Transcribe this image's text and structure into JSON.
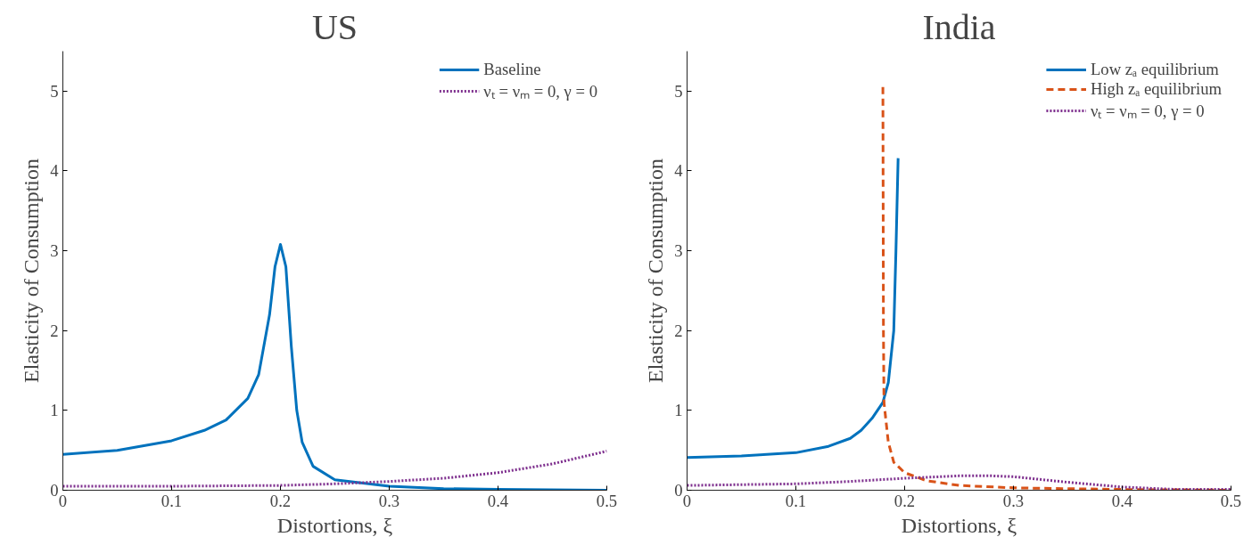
{
  "chart_data": [
    {
      "type": "line",
      "title": "US",
      "xlabel": "Distortions, ξ",
      "ylabel": "Elasticity of Consumption",
      "xlim": [
        0,
        0.5
      ],
      "ylim": [
        0,
        5.5
      ],
      "xticks": [
        0,
        0.1,
        0.2,
        0.3,
        0.4,
        0.5
      ],
      "yticks": [
        0,
        1,
        2,
        3,
        4,
        5
      ],
      "grid": false,
      "legend": "top right",
      "series": [
        {
          "name": "Baseline",
          "color": "#0072bd",
          "line_style": "solid",
          "x": [
            0,
            0.05,
            0.1,
            0.13,
            0.15,
            0.17,
            0.18,
            0.19,
            0.195,
            0.2,
            0.205,
            0.21,
            0.215,
            0.22,
            0.23,
            0.25,
            0.3,
            0.35,
            0.4,
            0.5
          ],
          "values": [
            0.45,
            0.5,
            0.62,
            0.75,
            0.88,
            1.15,
            1.45,
            2.2,
            2.8,
            3.08,
            2.8,
            1.8,
            1.0,
            0.6,
            0.3,
            0.13,
            0.05,
            0.02,
            0.01,
            0.0
          ]
        },
        {
          "name": "νₜ = νₘ = 0, γ = 0",
          "color": "#7e2f8e",
          "line_style": "dotted",
          "x": [
            0,
            0.1,
            0.2,
            0.25,
            0.3,
            0.35,
            0.4,
            0.45,
            0.5
          ],
          "values": [
            0.05,
            0.05,
            0.06,
            0.08,
            0.11,
            0.15,
            0.22,
            0.33,
            0.49
          ]
        }
      ]
    },
    {
      "type": "line",
      "title": "India",
      "xlabel": "Distortions, ξ",
      "ylabel": "Elasticity of Consumption",
      "xlim": [
        0,
        0.5
      ],
      "ylim": [
        0,
        5.5
      ],
      "xticks": [
        0,
        0.1,
        0.2,
        0.3,
        0.4,
        0.5
      ],
      "yticks": [
        0,
        1,
        2,
        3,
        4,
        5
      ],
      "grid": false,
      "legend": "top right",
      "series": [
        {
          "name": "Low zₐ equilibrium",
          "color": "#0072bd",
          "line_style": "solid",
          "x": [
            0,
            0.05,
            0.1,
            0.13,
            0.15,
            0.16,
            0.17,
            0.18,
            0.185,
            0.19,
            0.192,
            0.194
          ],
          "values": [
            0.41,
            0.43,
            0.47,
            0.55,
            0.65,
            0.75,
            0.9,
            1.1,
            1.35,
            2.0,
            3.0,
            4.16
          ]
        },
        {
          "name": "High zₐ equilibrium",
          "color": "#d95319",
          "line_style": "dashed",
          "x": [
            0.18,
            0.1805,
            0.181,
            0.185,
            0.19,
            0.2,
            0.22,
            0.25,
            0.3,
            0.4,
            0.5
          ],
          "values": [
            5.05,
            2.0,
            1.1,
            0.6,
            0.35,
            0.22,
            0.12,
            0.06,
            0.03,
            0.01,
            0.0
          ]
        },
        {
          "name": "νₜ = νₘ = 0, γ = 0",
          "color": "#7e2f8e",
          "line_style": "dotted",
          "x": [
            0,
            0.1,
            0.15,
            0.2,
            0.25,
            0.28,
            0.3,
            0.35,
            0.4,
            0.45,
            0.5
          ],
          "values": [
            0.06,
            0.08,
            0.11,
            0.15,
            0.18,
            0.18,
            0.17,
            0.1,
            0.04,
            0.01,
            0.01
          ]
        }
      ]
    }
  ]
}
